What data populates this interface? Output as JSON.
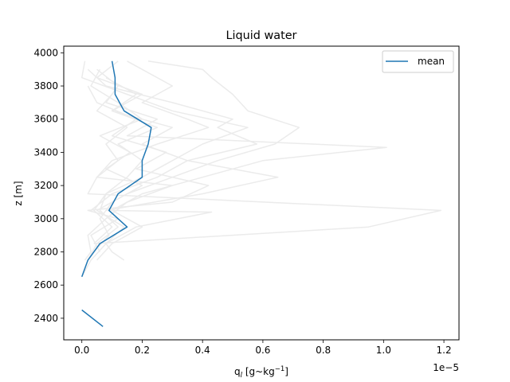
{
  "chart_data": {
    "type": "line",
    "title": "Liquid water",
    "xlabel": "q_l [g~kg⁻¹]",
    "xlabel_main": "q",
    "xlabel_sub": "l",
    "xlabel_rest": " [g~kg",
    "xlabel_sup": "−1",
    "xlabel_end": "]",
    "ylabel": "z [m]",
    "x_offset_label": "1e−5",
    "xlim": [
      -0.06,
      1.25
    ],
    "ylim": [
      2270,
      4040
    ],
    "xticks": [
      0.0,
      0.2,
      0.4,
      0.6,
      0.8,
      1.0,
      1.2
    ],
    "xtick_labels": [
      "0.0",
      "0.2",
      "0.4",
      "0.6",
      "0.8",
      "1.0",
      "1.2"
    ],
    "yticks": [
      2400,
      2600,
      2800,
      3000,
      3200,
      3400,
      3600,
      3800,
      4000
    ],
    "ytick_labels": [
      "2400",
      "2600",
      "2800",
      "3000",
      "3200",
      "3400",
      "3600",
      "3800",
      "4000"
    ],
    "legend": {
      "position": "top-right",
      "entries": [
        "mean"
      ]
    },
    "colors": {
      "mean": "#1f77b4",
      "members": "#ebebeb"
    },
    "series": [
      {
        "name": "mean",
        "segments": [
          [
            [
              0.1,
              3950
            ],
            [
              0.11,
              3850
            ],
            [
              0.11,
              3750
            ],
            [
              0.14,
              3650
            ],
            [
              0.23,
              3550
            ],
            [
              0.22,
              3450
            ],
            [
              0.2,
              3350
            ],
            [
              0.2,
              3250
            ],
            [
              0.12,
              3150
            ],
            [
              0.09,
              3050
            ],
            [
              0.15,
              2950
            ],
            [
              0.06,
              2850
            ],
            [
              0.02,
              2750
            ],
            [
              0.0,
              2650
            ]
          ],
          [
            [
              0.0,
              2450
            ],
            [
              0.07,
              2350
            ]
          ]
        ]
      }
    ],
    "members": [
      [
        [
          0.12,
          3950
        ],
        [
          0.05,
          3850
        ],
        [
          0.2,
          3750
        ],
        [
          0.1,
          3650
        ],
        [
          0.25,
          3550
        ],
        [
          0.12,
          3450
        ],
        [
          0.2,
          3350
        ],
        [
          0.15,
          3250
        ],
        [
          0.08,
          3150
        ],
        [
          0.06,
          3050
        ],
        [
          0.12,
          2950
        ],
        [
          0.05,
          2850
        ],
        [
          0.02,
          2750
        ]
      ],
      [
        [
          0.01,
          3950
        ],
        [
          0.0,
          3850
        ],
        [
          0.15,
          3750
        ],
        [
          0.3,
          3650
        ],
        [
          0.55,
          3550
        ],
        [
          0.4,
          3450
        ],
        [
          0.3,
          3350
        ],
        [
          0.2,
          3250
        ],
        [
          0.08,
          3150
        ],
        [
          0.04,
          3050
        ],
        [
          0.1,
          2950
        ],
        [
          0.04,
          2850
        ]
      ],
      [
        [
          0.22,
          3950
        ],
        [
          0.4,
          3900
        ],
        [
          0.43,
          3850
        ],
        [
          0.5,
          3750
        ],
        [
          0.55,
          3650
        ],
        [
          0.72,
          3550
        ],
        [
          0.64,
          3450
        ],
        [
          0.45,
          3350
        ],
        [
          0.3,
          3250
        ],
        [
          0.15,
          3150
        ],
        [
          0.05,
          3050
        ],
        [
          0.14,
          2950
        ],
        [
          0.08,
          2850
        ],
        [
          0.03,
          2750
        ],
        [
          0.0,
          2650
        ]
      ],
      [
        [
          0.02,
          3900
        ],
        [
          0.08,
          3800
        ],
        [
          0.3,
          3700
        ],
        [
          0.5,
          3600
        ],
        [
          0.45,
          3550
        ],
        [
          0.58,
          3450
        ],
        [
          0.35,
          3350
        ],
        [
          0.25,
          3250
        ],
        [
          0.1,
          3150
        ],
        [
          0.03,
          3050
        ]
      ],
      [
        [
          0.15,
          3950
        ],
        [
          0.3,
          3800
        ],
        [
          0.2,
          3700
        ],
        [
          0.35,
          3600
        ],
        [
          0.42,
          3550
        ],
        [
          0.25,
          3450
        ],
        [
          0.1,
          3350
        ],
        [
          0.05,
          3250
        ],
        [
          0.02,
          3150
        ],
        [
          1.19,
          3050
        ],
        [
          0.95,
          2950
        ],
        [
          0.04,
          2850
        ]
      ],
      [
        [
          0.05,
          3900
        ],
        [
          0.12,
          3800
        ],
        [
          0.08,
          3700
        ],
        [
          0.25,
          3600
        ],
        [
          0.15,
          3500
        ],
        [
          1.01,
          3430
        ],
        [
          0.6,
          3350
        ],
        [
          0.4,
          3250
        ],
        [
          0.2,
          3150
        ],
        [
          0.1,
          3050
        ],
        [
          0.2,
          2950
        ],
        [
          0.1,
          2850
        ],
        [
          0.05,
          2750
        ]
      ],
      [
        [
          0.08,
          3850
        ],
        [
          0.18,
          3750
        ],
        [
          0.1,
          3650
        ],
        [
          0.3,
          3550
        ],
        [
          0.2,
          3450
        ],
        [
          0.35,
          3350
        ],
        [
          0.65,
          3250
        ],
        [
          0.4,
          3150
        ],
        [
          0.08,
          3050
        ],
        [
          0.43,
          3040
        ],
        [
          0.18,
          2950
        ],
        [
          0.08,
          2850
        ],
        [
          0.1,
          2800
        ],
        [
          0.14,
          2750
        ]
      ],
      [
        [
          0.02,
          3800
        ],
        [
          0.05,
          3700
        ],
        [
          0.18,
          3600
        ],
        [
          0.1,
          3500
        ],
        [
          0.28,
          3400
        ],
        [
          0.18,
          3300
        ],
        [
          0.42,
          3200
        ],
        [
          0.3,
          3100
        ],
        [
          0.02,
          3050
        ],
        [
          0.12,
          3000
        ],
        [
          0.03,
          2900
        ],
        [
          0.06,
          2800
        ]
      ],
      [
        [
          0.1,
          3750
        ],
        [
          0.05,
          3650
        ],
        [
          0.15,
          3550
        ],
        [
          0.08,
          3450
        ],
        [
          0.12,
          3350
        ],
        [
          0.05,
          3250
        ],
        [
          0.3,
          3200
        ],
        [
          0.15,
          3100
        ],
        [
          0.08,
          3000
        ],
        [
          0.02,
          2900
        ],
        [
          0.03,
          2800
        ],
        [
          0.01,
          2750
        ]
      ],
      [
        [
          0.06,
          3900
        ],
        [
          0.03,
          3800
        ],
        [
          0.12,
          3700
        ],
        [
          0.2,
          3600
        ],
        [
          0.06,
          3500
        ],
        [
          0.16,
          3400
        ],
        [
          0.08,
          3300
        ],
        [
          0.2,
          3200
        ],
        [
          0.1,
          3100
        ],
        [
          0.06,
          3000
        ],
        [
          0.09,
          2900
        ],
        [
          0.04,
          2800
        ]
      ]
    ]
  }
}
